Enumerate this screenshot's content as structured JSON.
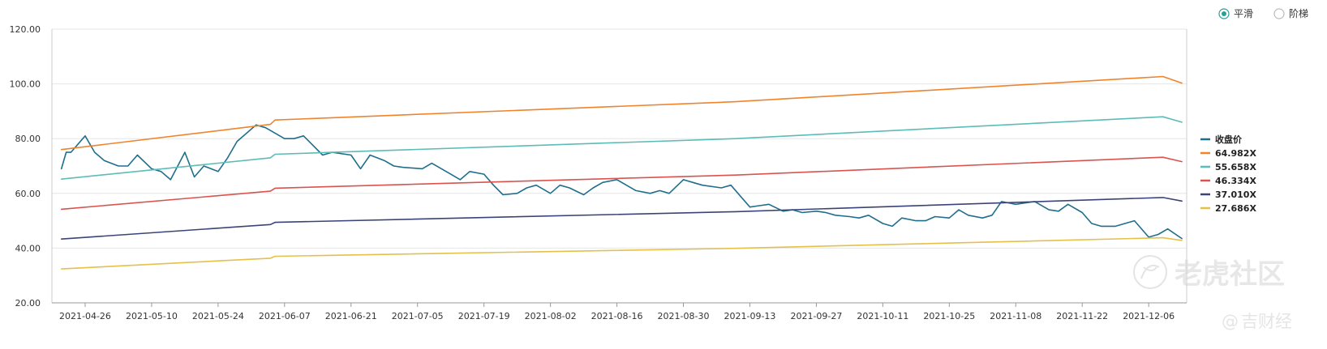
{
  "controls": {
    "smooth_label": "平滑",
    "step_label": "阶梯",
    "selected": "smooth",
    "accent": "#2a9d9a"
  },
  "watermark": {
    "text1": "老虎社区",
    "text2": "@",
    "text3": "吉财经"
  },
  "chart_data": {
    "type": "line",
    "ylim": [
      20,
      120
    ],
    "yticks": [
      "20.00",
      "40.00",
      "60.00",
      "80.00",
      "100.00",
      "120.00"
    ],
    "xlim": [
      "2021-04-19",
      "2021-12-14"
    ],
    "xticks": [
      "2021-04-26",
      "2021-05-10",
      "2021-05-24",
      "2021-06-07",
      "2021-06-21",
      "2021-07-05",
      "2021-07-19",
      "2021-08-02",
      "2021-08-16",
      "2021-08-30",
      "2021-09-13",
      "2021-09-27",
      "2021-10-11",
      "2021-10-25",
      "2021-11-08",
      "2021-11-22",
      "2021-12-06"
    ],
    "grid": true,
    "legend_position": "right",
    "series": [
      {
        "name": "收盘价",
        "color": "#1f6e8c",
        "width": 1.6,
        "x": [
          "2021-04-21",
          "2021-04-22",
          "2021-04-23",
          "2021-04-26",
          "2021-04-28",
          "2021-04-30",
          "2021-05-03",
          "2021-05-05",
          "2021-05-07",
          "2021-05-10",
          "2021-05-12",
          "2021-05-14",
          "2021-05-17",
          "2021-05-19",
          "2021-05-21",
          "2021-05-24",
          "2021-05-26",
          "2021-05-28",
          "2021-06-01",
          "2021-06-03",
          "2021-06-07",
          "2021-06-09",
          "2021-06-11",
          "2021-06-15",
          "2021-06-17",
          "2021-06-21",
          "2021-06-23",
          "2021-06-25",
          "2021-06-28",
          "2021-06-30",
          "2021-07-02",
          "2021-07-06",
          "2021-07-08",
          "2021-07-12",
          "2021-07-14",
          "2021-07-16",
          "2021-07-19",
          "2021-07-21",
          "2021-07-23",
          "2021-07-26",
          "2021-07-28",
          "2021-07-30",
          "2021-08-02",
          "2021-08-04",
          "2021-08-06",
          "2021-08-09",
          "2021-08-11",
          "2021-08-13",
          "2021-08-16",
          "2021-08-18",
          "2021-08-20",
          "2021-08-23",
          "2021-08-25",
          "2021-08-27",
          "2021-08-30",
          "2021-09-01",
          "2021-09-03",
          "2021-09-07",
          "2021-09-09",
          "2021-09-13",
          "2021-09-15",
          "2021-09-17",
          "2021-09-20",
          "2021-09-22",
          "2021-09-24",
          "2021-09-27",
          "2021-09-29",
          "2021-10-01",
          "2021-10-04",
          "2021-10-06",
          "2021-10-08",
          "2021-10-11",
          "2021-10-13",
          "2021-10-15",
          "2021-10-18",
          "2021-10-20",
          "2021-10-22",
          "2021-10-25",
          "2021-10-27",
          "2021-10-29",
          "2021-11-01",
          "2021-11-03",
          "2021-11-05",
          "2021-11-08",
          "2021-11-10",
          "2021-11-12",
          "2021-11-15",
          "2021-11-17",
          "2021-11-19",
          "2021-11-22",
          "2021-11-24",
          "2021-11-26",
          "2021-11-29",
          "2021-12-01",
          "2021-12-03",
          "2021-12-06",
          "2021-12-08",
          "2021-12-10",
          "2021-12-13"
        ],
        "y": [
          69,
          75,
          75,
          81,
          75,
          72,
          70,
          70,
          74,
          69,
          68,
          65,
          75,
          66,
          70,
          68,
          73,
          79,
          85,
          84,
          80,
          80,
          81,
          74,
          75,
          74,
          69,
          74,
          72,
          70,
          69.5,
          69,
          71,
          67,
          65,
          68,
          67,
          63,
          59.5,
          60,
          62,
          63,
          60,
          63,
          62,
          59.5,
          62,
          64,
          65,
          63,
          61,
          60,
          61,
          60,
          65,
          64,
          63,
          62,
          63,
          55,
          55.5,
          56,
          53.5,
          54,
          53,
          53.5,
          53,
          52,
          51.5,
          51,
          52,
          49,
          48,
          51,
          50,
          50,
          51.5,
          51,
          54,
          52,
          51,
          52,
          57,
          56,
          56.5,
          57,
          54,
          53.5,
          56,
          53,
          49,
          48,
          48,
          49,
          50,
          44,
          45,
          47,
          43.5
        ]
      },
      {
        "name": "64.982X",
        "color": "#f0842d",
        "width": 1.6,
        "x": [
          "2021-04-21",
          "2021-06-04",
          "2021-06-05",
          "2021-09-10",
          "2021-12-09",
          "2021-12-13"
        ],
        "y": [
          76,
          85.2,
          86.8,
          93.5,
          102.7,
          100.3
        ]
      },
      {
        "name": "55.658X",
        "color": "#5bbcb8",
        "width": 1.6,
        "x": [
          "2021-04-21",
          "2021-06-04",
          "2021-06-05",
          "2021-09-10",
          "2021-12-09",
          "2021-12-13"
        ],
        "y": [
          65.2,
          73,
          74.3,
          80,
          88,
          86
        ]
      },
      {
        "name": "46.334X",
        "color": "#d9534f",
        "width": 1.6,
        "x": [
          "2021-04-21",
          "2021-06-04",
          "2021-06-05",
          "2021-09-10",
          "2021-12-09",
          "2021-12-13"
        ],
        "y": [
          54.2,
          60.8,
          61.9,
          66.7,
          73.2,
          71.6
        ]
      },
      {
        "name": "37.010X",
        "color": "#3a4478",
        "width": 1.6,
        "x": [
          "2021-04-21",
          "2021-06-04",
          "2021-06-05",
          "2021-09-10",
          "2021-12-09",
          "2021-12-13"
        ],
        "y": [
          43.3,
          48.6,
          49.4,
          53.3,
          58.5,
          57.2
        ]
      },
      {
        "name": "27.686X",
        "color": "#e5c04a",
        "width": 1.6,
        "x": [
          "2021-04-21",
          "2021-06-04",
          "2021-06-05",
          "2021-09-10",
          "2021-12-09",
          "2021-12-13"
        ],
        "y": [
          32.4,
          36.3,
          37,
          39.9,
          43.8,
          42.8
        ]
      }
    ]
  }
}
